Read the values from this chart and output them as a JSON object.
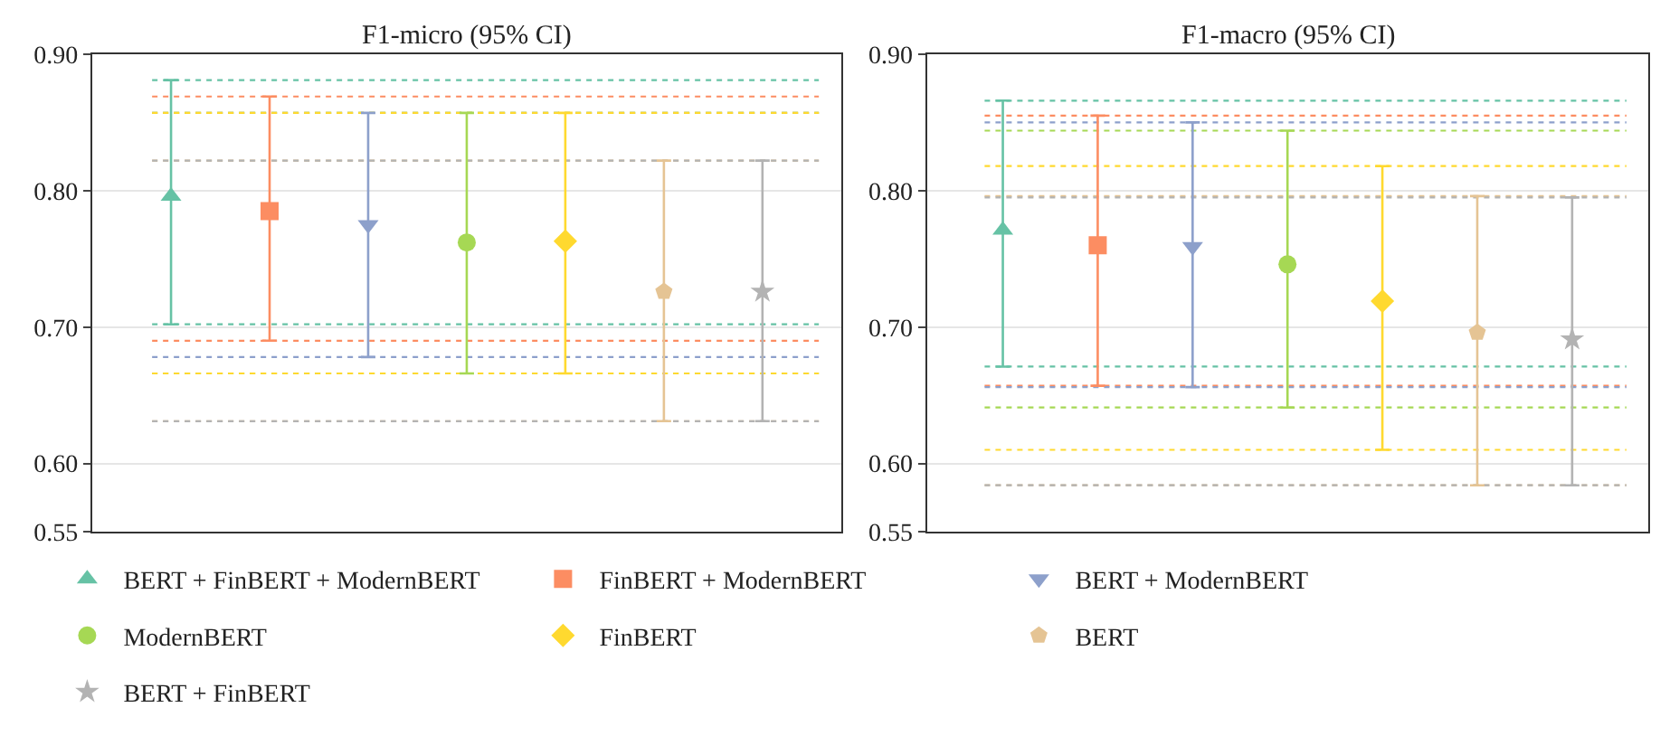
{
  "chart_data": [
    {
      "type": "scatter",
      "title": "F1-micro (95% CI)",
      "categories": [
        null,
        null,
        null,
        null,
        null,
        null,
        null
      ],
      "ylim": [
        0.55,
        0.9
      ],
      "yticks": [
        {
          "value": 0.55,
          "label": "0.55"
        },
        {
          "value": 0.6,
          "label": "0.60"
        },
        {
          "value": 0.7,
          "label": "0.70"
        },
        {
          "value": 0.8,
          "label": "0.80"
        },
        {
          "value": 0.9,
          "label": "0.90"
        }
      ],
      "grid": "y",
      "tick_labels": "y",
      "legend": "bottom",
      "series": [
        {
          "name": "BERT + FinBERT + ModernBERT",
          "color": "#66c2a5",
          "marker": "triangle",
          "values": [
            0.796,
            null,
            null,
            null,
            null,
            null,
            null
          ],
          "errors": [
            [
              0.702,
              0.881
            ],
            null,
            null,
            null,
            null,
            null,
            null
          ]
        },
        {
          "name": "FinBERT + ModernBERT",
          "color": "#fc8d62",
          "marker": "square",
          "values": [
            null,
            0.785,
            null,
            null,
            null,
            null,
            null
          ],
          "errors": [
            null,
            [
              0.69,
              0.869
            ],
            null,
            null,
            null,
            null,
            null
          ]
        },
        {
          "name": "BERT + ModernBERT",
          "color": "#8da0cb",
          "marker": "triangle-down",
          "values": [
            null,
            null,
            0.775,
            null,
            null,
            null,
            null
          ],
          "errors": [
            null,
            null,
            [
              0.678,
              0.857
            ],
            null,
            null,
            null,
            null
          ]
        },
        {
          "name": "ModernBERT",
          "color": "#a6d854",
          "marker": "circle",
          "values": [
            null,
            null,
            null,
            0.762,
            null,
            null,
            null
          ],
          "errors": [
            null,
            null,
            null,
            [
              0.666,
              0.857
            ],
            null,
            null,
            null
          ]
        },
        {
          "name": "FinBERT",
          "color": "#ffd92f",
          "marker": "diamond",
          "values": [
            null,
            null,
            null,
            null,
            0.763,
            null,
            null
          ],
          "errors": [
            null,
            null,
            null,
            null,
            [
              0.666,
              0.857
            ],
            null,
            null
          ]
        },
        {
          "name": "BERT",
          "color": "#e5c494",
          "values": [
            null,
            null,
            null,
            null,
            null,
            0.726,
            null
          ],
          "errors": [
            null,
            null,
            null,
            null,
            null,
            [
              0.631,
              0.822
            ],
            null
          ]
        },
        {
          "name": "BERT + FinBERT",
          "color": "#b3b3b3",
          "marker": "star",
          "values": [
            null,
            null,
            null,
            null,
            null,
            null,
            0.726
          ],
          "errors": [
            null,
            null,
            null,
            null,
            null,
            null,
            [
              0.631,
              0.822
            ]
          ]
        }
      ],
      "ref_lines": [
        {
          "axis": "y",
          "value": 0.881,
          "color": "#66c2a5",
          "line_style": "dotted"
        },
        {
          "axis": "y",
          "value": 0.702,
          "color": "#66c2a5",
          "line_style": "dotted"
        },
        {
          "axis": "y",
          "value": 0.869,
          "color": "#fc8d62",
          "line_style": "dotted"
        },
        {
          "axis": "y",
          "value": 0.69,
          "color": "#fc8d62",
          "line_style": "dotted"
        },
        {
          "axis": "y",
          "value": 0.857,
          "color": "#8da0cb",
          "line_style": "dotted"
        },
        {
          "axis": "y",
          "value": 0.678,
          "color": "#8da0cb",
          "line_style": "dotted"
        },
        {
          "axis": "y",
          "value": 0.857,
          "color": "#a6d854",
          "line_style": "dotted"
        },
        {
          "axis": "y",
          "value": 0.666,
          "color": "#a6d854",
          "line_style": "dotted"
        },
        {
          "axis": "y",
          "value": 0.857,
          "color": "#ffd92f",
          "line_style": "dotted"
        },
        {
          "axis": "y",
          "value": 0.666,
          "color": "#ffd92f",
          "line_style": "dotted"
        },
        {
          "axis": "y",
          "value": 0.822,
          "color": "#e5c494",
          "line_style": "dotted"
        },
        {
          "axis": "y",
          "value": 0.631,
          "color": "#e5c494",
          "line_style": "dotted"
        },
        {
          "axis": "y",
          "value": 0.822,
          "color": "#b3b3b3",
          "line_style": "dotted"
        },
        {
          "axis": "y",
          "value": 0.631,
          "color": "#b3b3b3",
          "line_style": "dotted"
        }
      ]
    },
    {
      "type": "scatter",
      "title": "F1-macro (95% CI)",
      "categories": [
        null,
        null,
        null,
        null,
        null,
        null,
        null
      ],
      "ylim": [
        0.55,
        0.9
      ],
      "yticks": [
        {
          "value": 0.55,
          "label": "0.55"
        },
        {
          "value": 0.6,
          "label": "0.60"
        },
        {
          "value": 0.7,
          "label": "0.70"
        },
        {
          "value": 0.8,
          "label": "0.80"
        },
        {
          "value": 0.9,
          "label": "0.90"
        }
      ],
      "grid": "y",
      "tick_labels": "y",
      "series": [
        {
          "color": "#66c2a5",
          "marker": "triangle",
          "values": [
            0.771,
            null,
            null,
            null,
            null,
            null,
            null
          ],
          "errors": [
            [
              0.671,
              0.866
            ],
            null,
            null,
            null,
            null,
            null,
            null
          ]
        },
        {
          "color": "#fc8d62",
          "marker": "square",
          "values": [
            null,
            0.76,
            null,
            null,
            null,
            null,
            null
          ],
          "errors": [
            null,
            [
              0.657,
              0.855
            ],
            null,
            null,
            null,
            null,
            null
          ]
        },
        {
          "color": "#8da0cb",
          "marker": "triangle-down",
          "values": [
            null,
            null,
            0.759,
            null,
            null,
            null,
            null
          ],
          "errors": [
            null,
            null,
            [
              0.656,
              0.85
            ],
            null,
            null,
            null,
            null
          ]
        },
        {
          "color": "#a6d854",
          "marker": "circle",
          "values": [
            null,
            null,
            null,
            0.746,
            null,
            null,
            null
          ],
          "errors": [
            null,
            null,
            null,
            [
              0.641,
              0.844
            ],
            null,
            null,
            null
          ]
        },
        {
          "color": "#ffd92f",
          "marker": "diamond",
          "values": [
            null,
            null,
            null,
            null,
            0.719,
            null,
            null
          ],
          "errors": [
            null,
            null,
            null,
            null,
            [
              0.61,
              0.818
            ],
            null,
            null
          ]
        },
        {
          "color": "#e5c494",
          "values": [
            null,
            null,
            null,
            null,
            null,
            0.696,
            null
          ],
          "errors": [
            null,
            null,
            null,
            null,
            null,
            [
              0.584,
              0.796
            ],
            null
          ]
        },
        {
          "color": "#b3b3b3",
          "marker": "star",
          "values": [
            null,
            null,
            null,
            null,
            null,
            null,
            0.691
          ],
          "errors": [
            null,
            null,
            null,
            null,
            null,
            null,
            [
              0.584,
              0.795
            ]
          ]
        }
      ],
      "ref_lines": [
        {
          "axis": "y",
          "value": 0.866,
          "color": "#66c2a5",
          "line_style": "dotted"
        },
        {
          "axis": "y",
          "value": 0.671,
          "color": "#66c2a5",
          "line_style": "dotted"
        },
        {
          "axis": "y",
          "value": 0.855,
          "color": "#fc8d62",
          "line_style": "dotted"
        },
        {
          "axis": "y",
          "value": 0.657,
          "color": "#fc8d62",
          "line_style": "dotted"
        },
        {
          "axis": "y",
          "value": 0.85,
          "color": "#8da0cb",
          "line_style": "dotted"
        },
        {
          "axis": "y",
          "value": 0.656,
          "color": "#8da0cb",
          "line_style": "dotted"
        },
        {
          "axis": "y",
          "value": 0.844,
          "color": "#a6d854",
          "line_style": "dotted"
        },
        {
          "axis": "y",
          "value": 0.641,
          "color": "#a6d854",
          "line_style": "dotted"
        },
        {
          "axis": "y",
          "value": 0.818,
          "color": "#ffd92f",
          "line_style": "dotted"
        },
        {
          "axis": "y",
          "value": 0.61,
          "color": "#ffd92f",
          "line_style": "dotted"
        },
        {
          "axis": "y",
          "value": 0.796,
          "color": "#e5c494",
          "line_style": "dotted"
        },
        {
          "axis": "y",
          "value": 0.584,
          "color": "#e5c494",
          "line_style": "dotted"
        },
        {
          "axis": "y",
          "value": 0.795,
          "color": "#b3b3b3",
          "line_style": "dotted"
        },
        {
          "axis": "y",
          "value": 0.584,
          "color": "#b3b3b3",
          "line_style": "dotted"
        }
      ]
    }
  ]
}
